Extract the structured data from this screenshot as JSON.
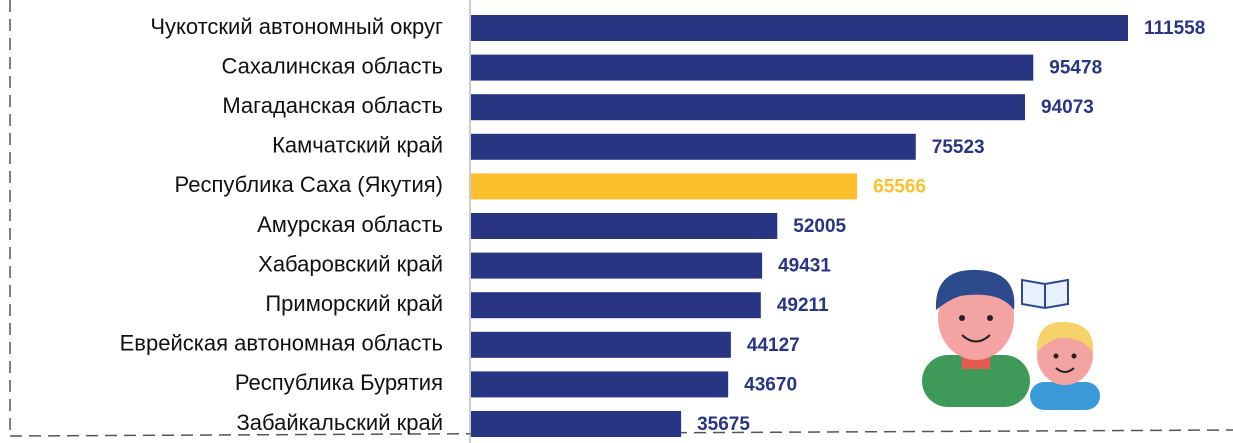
{
  "chart_data": {
    "type": "bar",
    "orientation": "horizontal",
    "categories": [
      "Чукотский автономный округ",
      "Сахалинская область",
      "Магаданская область",
      "Камчатский край",
      "Республика Саха (Якутия)",
      "Амурская область",
      "Хабаровский край",
      "Приморский край",
      "Еврейская автономная область",
      "Республика Бурятия",
      "Забайкальский край"
    ],
    "values": [
      111558,
      95478,
      94073,
      75523,
      65566,
      52005,
      49431,
      49211,
      44127,
      43670,
      35675
    ],
    "colors": [
      "#283583",
      "#283583",
      "#283583",
      "#283583",
      "#fbc02d",
      "#283583",
      "#283583",
      "#283583",
      "#283583",
      "#283583",
      "#283583"
    ]
  }
}
